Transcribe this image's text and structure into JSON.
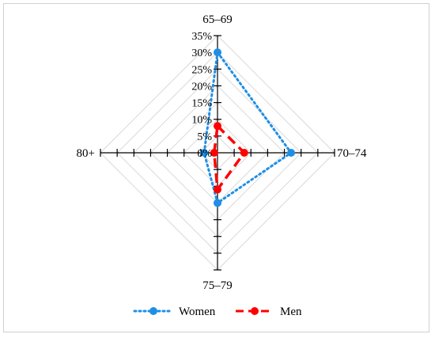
{
  "chart_data": {
    "type": "radar",
    "categories": [
      "65–69",
      "70–74",
      "75–79",
      "80+"
    ],
    "r_ticks": [
      "0%",
      "5%",
      "10%",
      "15%",
      "20%",
      "25%",
      "30%",
      "35%"
    ],
    "r_range": [
      0,
      35
    ],
    "series": [
      {
        "name": "Women",
        "values": [
          30,
          22,
          15,
          4
        ],
        "color": "#1f8fe6",
        "line": "dotted",
        "marker": "circle"
      },
      {
        "name": "Men",
        "values": [
          8,
          8,
          11,
          1
        ],
        "color": "#ff0000",
        "line": "dashed",
        "marker": "circle"
      }
    ],
    "legend_position": "bottom"
  }
}
